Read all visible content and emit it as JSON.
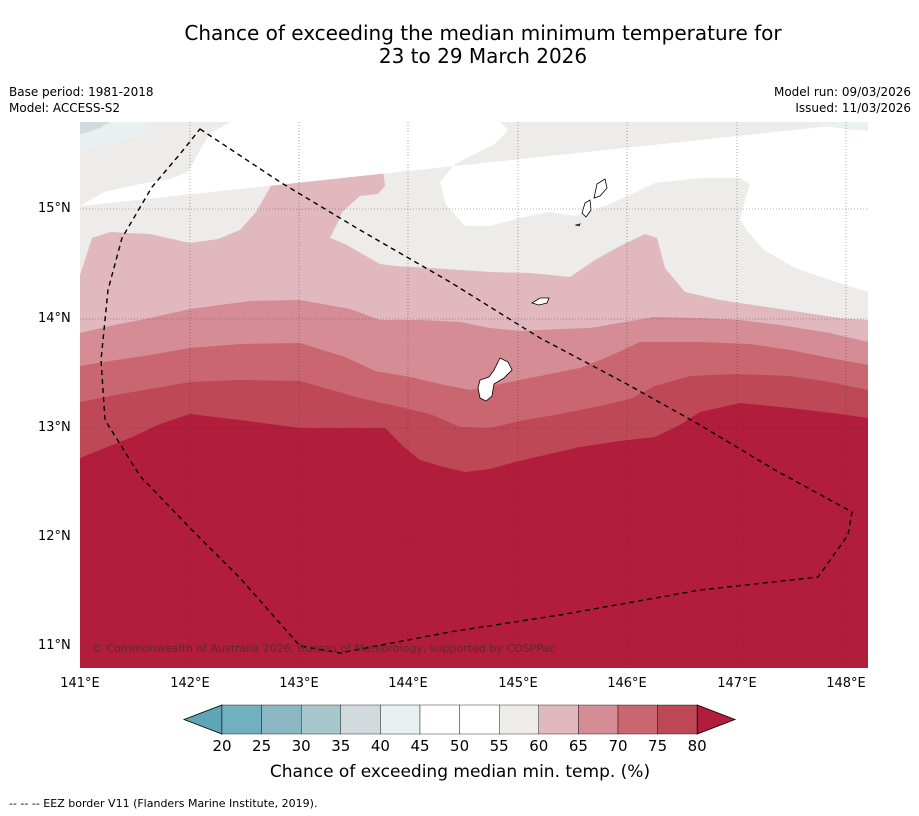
{
  "title": {
    "line1": "Chance of exceeding the median minimum temperature for",
    "line2": "23 to 29 March 2026"
  },
  "meta": {
    "base_period": "Base period: 1981-2018",
    "model": "Model: ACCESS-S2",
    "model_run": "Model run: 09/03/2026",
    "issued": "Issued: 11/03/2026"
  },
  "map": {
    "lat_labels": [
      "15°N",
      "14°N",
      "13°N",
      "12°N",
      "11°N"
    ],
    "lon_labels": [
      "141°E",
      "142°E",
      "143°E",
      "144°E",
      "145°E",
      "146°E",
      "147°E",
      "148°E"
    ],
    "copyright": "© Commonwealth of Australia 2026, Bureau of Meteorology, supported by COSPPac"
  },
  "colorbar": {
    "ticks": [
      "20",
      "25",
      "30",
      "35",
      "40",
      "45",
      "50",
      "55",
      "60",
      "65",
      "70",
      "75",
      "80"
    ],
    "colors": [
      "#5ea6b7",
      "#70b0bf",
      "#8bb6c3",
      "#a8c7cc",
      "#d1dbde",
      "#e8f0f2",
      "#ffffff",
      "#ffffff",
      "#eeeceb",
      "#e0b8be",
      "#d58c95",
      "#c96670",
      "#be4856",
      "#b21d3c"
    ],
    "title": "Chance of exceeding median min. temp. (%)"
  },
  "footer": {
    "legend_line": "--  --  -- EEZ border V11 (Flanders Marine Institute, 2019)."
  }
}
